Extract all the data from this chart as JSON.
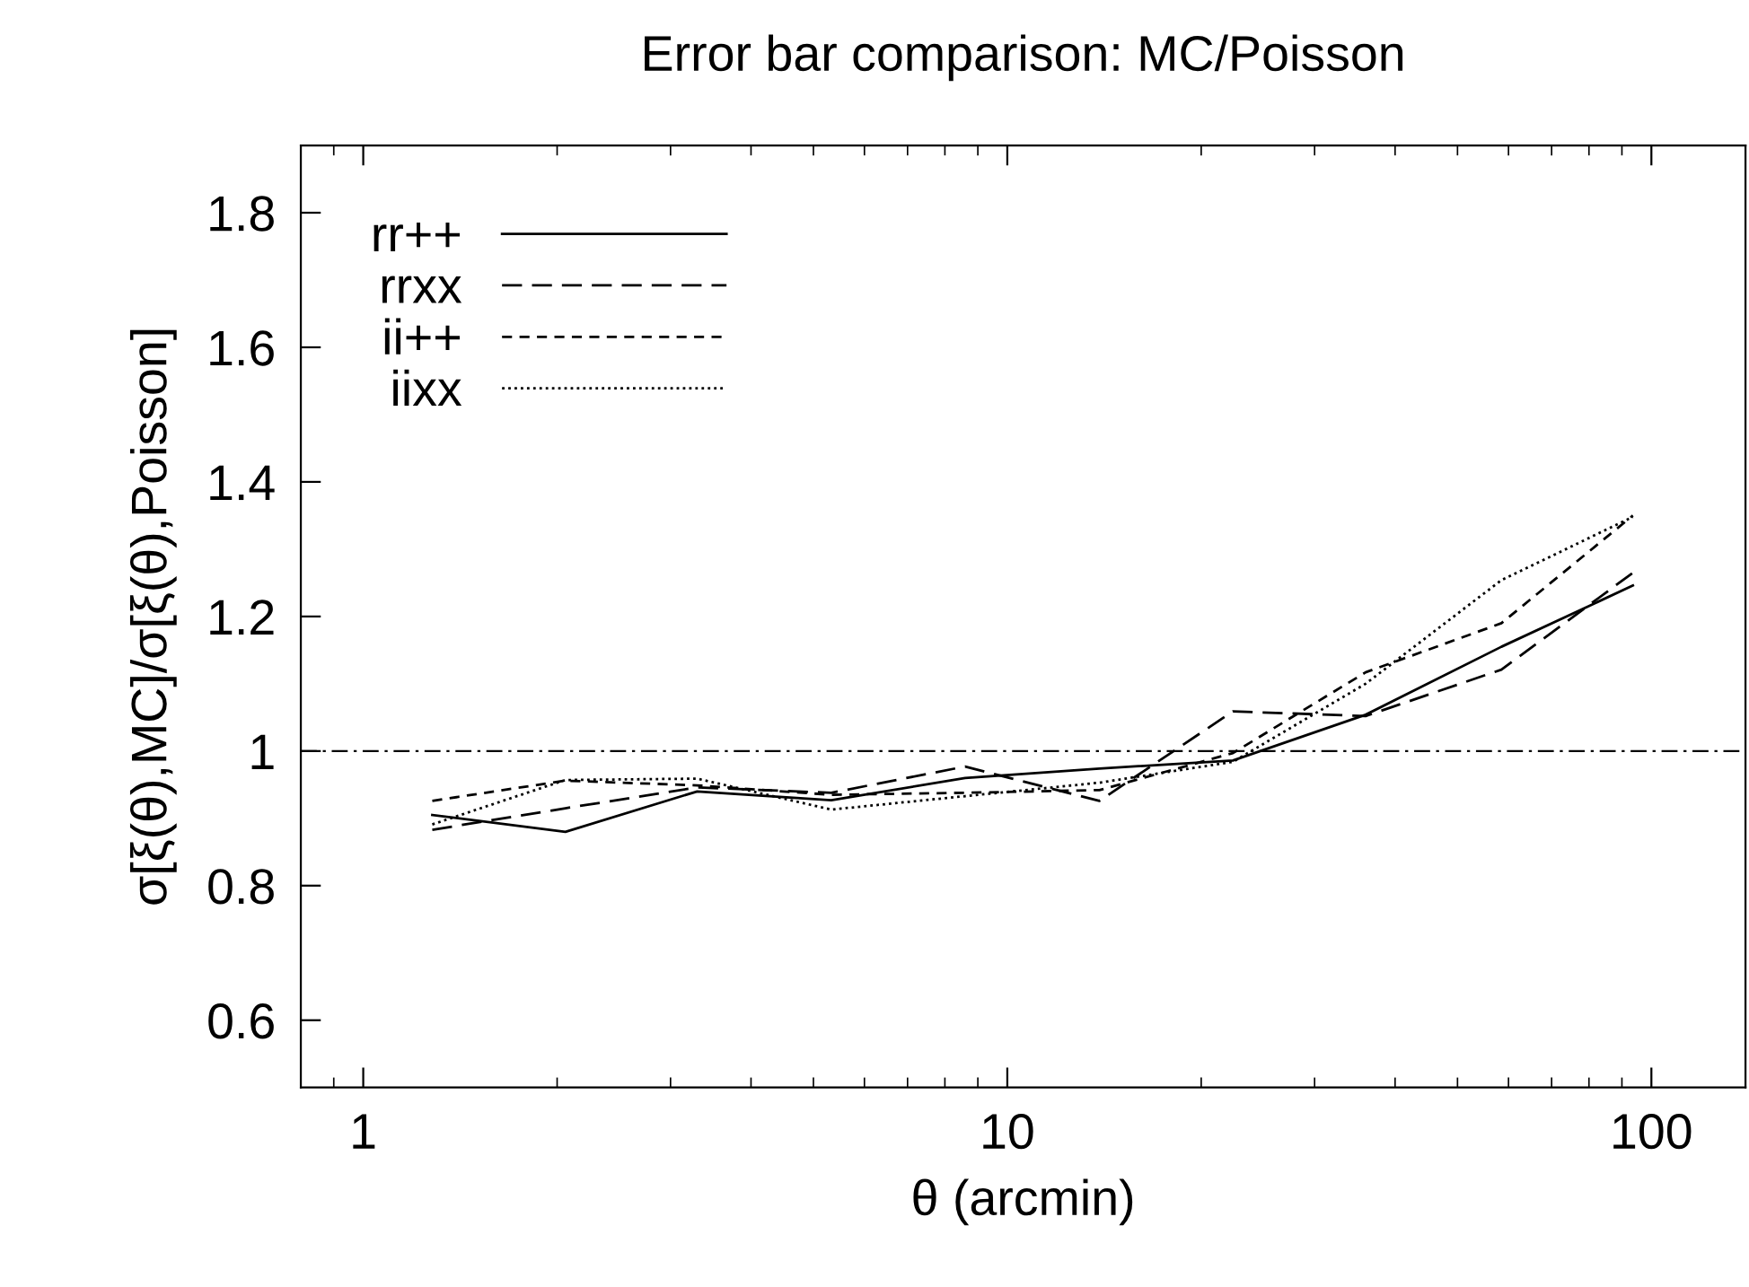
{
  "chart_data": {
    "type": "line",
    "title": "Error bar comparison: MC/Poisson",
    "xlabel": "θ (arcmin)",
    "ylabel": "σ[ξ(θ),MC]/σ[ξ(θ),Poisson]",
    "x": [
      1.28,
      2.06,
      3.3,
      5.33,
      8.6,
      13.9,
      22.4,
      36,
      58.5,
      93.6
    ],
    "log": "x",
    "xlim": [
      0.8,
      140
    ],
    "xticks": [
      1,
      10,
      100
    ],
    "ylim": [
      0.5,
      1.9
    ],
    "yticks": [
      0.6,
      0.8,
      1,
      1.2,
      1.4,
      1.6,
      1.8
    ],
    "grid": false,
    "legend": "top left",
    "marker": "none",
    "ref_lines": [
      {
        "axis": "y",
        "value": 1,
        "color": "#000000",
        "line_style": "dashdot"
      }
    ],
    "series": [
      {
        "name": "rr++",
        "color": "#000000",
        "line_style": "solid",
        "values": [
          0.905,
          0.88,
          0.94,
          0.927,
          0.96,
          0.974,
          0.986,
          1.054,
          1.155,
          1.246
        ]
      },
      {
        "name": "rrxx",
        "color": "#000000",
        "line_style": "dashed",
        "values": [
          0.883,
          0.915,
          0.946,
          0.938,
          0.977,
          0.926,
          1.059,
          1.052,
          1.121,
          1.265
        ]
      },
      {
        "name": "ii++",
        "color": "#000000",
        "line_style": "shortdash",
        "values": [
          0.926,
          0.956,
          0.949,
          0.935,
          0.938,
          0.942,
          0.997,
          1.117,
          1.19,
          1.35
        ]
      },
      {
        "name": "iixx",
        "color": "#000000",
        "line_style": "dotted",
        "values": [
          0.891,
          0.957,
          0.959,
          0.913,
          0.933,
          0.953,
          0.984,
          1.1,
          1.254,
          1.348
        ]
      }
    ]
  }
}
